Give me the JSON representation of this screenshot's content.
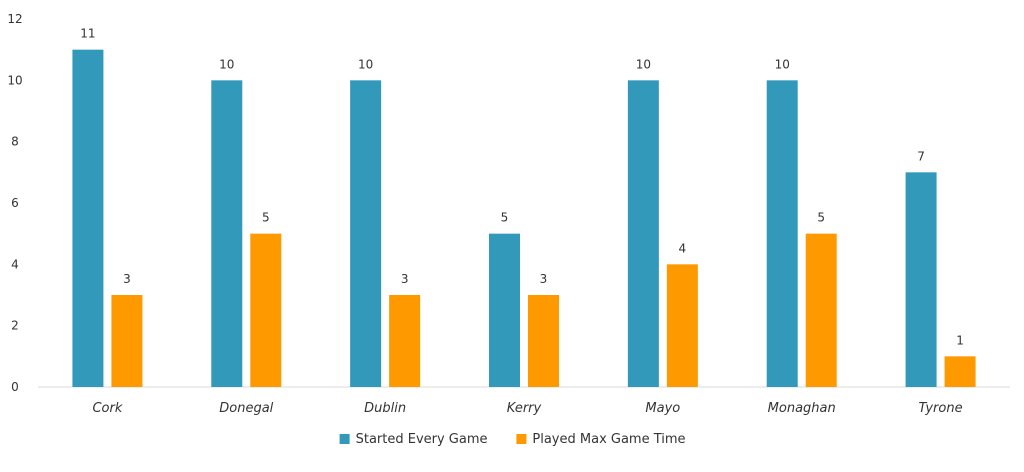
{
  "chart_data": {
    "type": "bar",
    "title": "",
    "xlabel": "",
    "ylabel": "",
    "categories": [
      "Cork",
      "Donegal",
      "Dublin",
      "Kerry",
      "Mayo",
      "Monaghan",
      "Tyrone"
    ],
    "series": [
      {
        "name": "Started Every Game",
        "values": [
          11,
          10,
          10,
          5,
          10,
          10,
          7
        ],
        "color": "#3399BB"
      },
      {
        "name": "Played Max Game Time",
        "values": [
          3,
          5,
          3,
          3,
          4,
          5,
          1
        ],
        "color": "#FF9900"
      }
    ],
    "ylim": [
      0,
      12
    ],
    "yticks": [
      0,
      2,
      4,
      6,
      8,
      10,
      12
    ],
    "grid": false,
    "legend_position": "bottom",
    "data_labels": true
  }
}
